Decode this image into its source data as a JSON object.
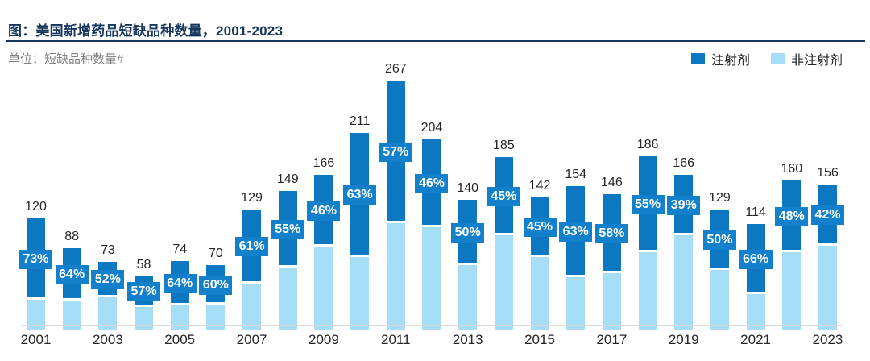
{
  "header": {
    "title": "图：美国新增药品短缺品种数量，2001-2023",
    "unit_label": "单位：短缺品种数量#"
  },
  "legend": {
    "items": [
      {
        "name": "injection",
        "label": "注射剂",
        "color": "#0d78c2"
      },
      {
        "name": "non-injection",
        "label": "非注射剂",
        "color": "#a6ddf7"
      }
    ],
    "position": "top-right"
  },
  "colors": {
    "injection": "#0d78c2",
    "non_injection": "#a6ddf7",
    "percent_badge_bg": "#1280cb",
    "title_navy": "#17365d",
    "axis_line": "#d9d9d9",
    "label_text": "#262626",
    "unit_text": "#7f7f7f",
    "background": "#ffffff"
  },
  "chart_data": {
    "type": "bar",
    "stacked": true,
    "title": "美国新增药品短缺品种数量，2001-2023",
    "ylabel": "短缺品种数量#",
    "categories": [
      2001,
      2002,
      2003,
      2004,
      2005,
      2006,
      2007,
      2008,
      2009,
      2010,
      2011,
      2012,
      2013,
      2014,
      2015,
      2016,
      2017,
      2018,
      2019,
      2020,
      2021,
      2022,
      2023
    ],
    "totals": [
      120,
      88,
      73,
      58,
      74,
      70,
      129,
      149,
      166,
      211,
      267,
      204,
      140,
      185,
      142,
      154,
      146,
      186,
      166,
      129,
      114,
      160,
      156
    ],
    "injection_pct": [
      73,
      64,
      52,
      57,
      64,
      60,
      61,
      55,
      46,
      63,
      57,
      46,
      50,
      45,
      45,
      63,
      58,
      55,
      39,
      50,
      66,
      48,
      42
    ],
    "series": [
      {
        "name": "注射剂",
        "role": "top-segment",
        "share_pct_of_total": [
          73,
          64,
          52,
          57,
          64,
          60,
          61,
          55,
          46,
          63,
          57,
          46,
          50,
          45,
          45,
          63,
          58,
          55,
          39,
          50,
          66,
          48,
          42
        ]
      },
      {
        "name": "非注射剂",
        "role": "bottom-segment",
        "share_pct_of_total": [
          27,
          36,
          48,
          43,
          36,
          40,
          39,
          45,
          54,
          37,
          43,
          54,
          50,
          55,
          55,
          37,
          42,
          45,
          61,
          50,
          34,
          52,
          58
        ]
      }
    ],
    "x_tick_labels": [
      "2001",
      "2003",
      "2005",
      "2007",
      "2009",
      "2011",
      "2013",
      "2015",
      "2017",
      "2019",
      "2021",
      "2023"
    ],
    "data_labels": "totals above bars, injection % badge centered on dark segment",
    "ylim": [
      0,
      267
    ],
    "grid": false,
    "legend_position": "top-right"
  }
}
